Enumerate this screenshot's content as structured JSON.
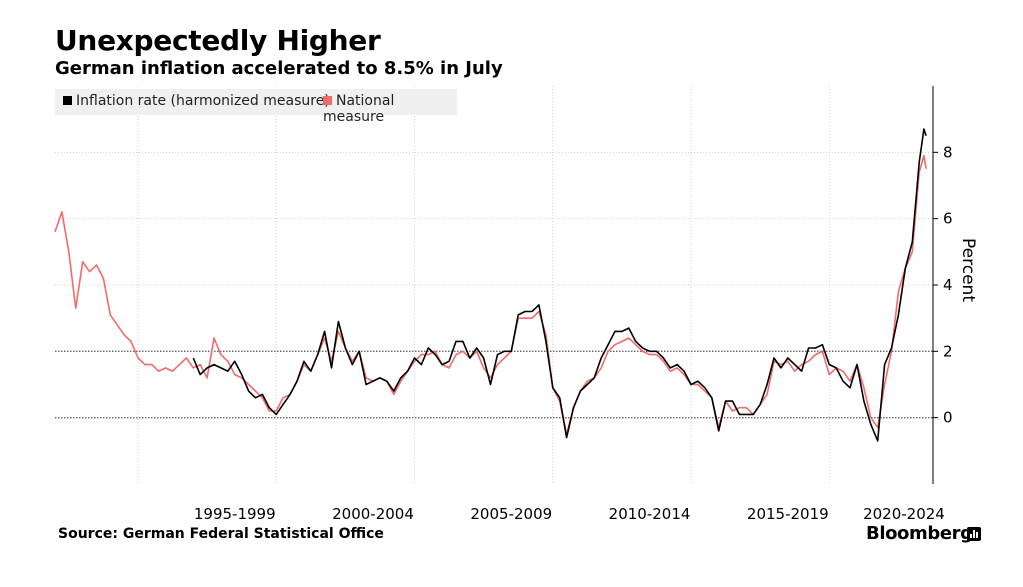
{
  "chart_data": {
    "type": "line",
    "title": "Unexpectedly Higher",
    "subtitle": "German inflation accelerated to 8.5% in July",
    "ylabel": "Percent",
    "xlabel": "",
    "ylim": [
      -2,
      10
    ],
    "yticks": [
      0,
      2,
      4,
      6,
      8
    ],
    "xlim": [
      1991.0,
      2022.75
    ],
    "x_period_labels": [
      "1995-1999",
      "2000-2004",
      "2005-2009",
      "2010-2014",
      "2015-2019",
      "2020-2024"
    ],
    "x_period_label_centers": [
      1997.5,
      2002.5,
      2007.5,
      2012.5,
      2017.5,
      2021.7
    ],
    "x_gridlines": [
      1994,
      1999,
      2004,
      2009,
      2014,
      2019
    ],
    "reference_lines": [
      0,
      2
    ],
    "legend": [
      "Inflation rate (harmonized measure)",
      "National measure"
    ],
    "colors": {
      "harmonized": "#000000",
      "national": "#f26b6b"
    },
    "series": [
      {
        "name": "Inflation rate (harmonized measure)",
        "x": [
          1996.0,
          1996.25,
          1996.5,
          1996.75,
          1997.0,
          1997.25,
          1997.5,
          1997.75,
          1998.0,
          1998.25,
          1998.5,
          1998.75,
          1999.0,
          1999.25,
          1999.5,
          1999.75,
          2000.0,
          2000.25,
          2000.5,
          2000.75,
          2001.0,
          2001.25,
          2001.5,
          2001.75,
          2002.0,
          2002.25,
          2002.5,
          2002.75,
          2003.0,
          2003.25,
          2003.5,
          2003.75,
          2004.0,
          2004.25,
          2004.5,
          2004.75,
          2005.0,
          2005.25,
          2005.5,
          2005.75,
          2006.0,
          2006.25,
          2006.5,
          2006.75,
          2007.0,
          2007.25,
          2007.5,
          2007.75,
          2008.0,
          2008.25,
          2008.5,
          2008.75,
          2009.0,
          2009.25,
          2009.5,
          2009.75,
          2010.0,
          2010.25,
          2010.5,
          2010.75,
          2011.0,
          2011.25,
          2011.5,
          2011.75,
          2012.0,
          2012.25,
          2012.5,
          2012.75,
          2013.0,
          2013.25,
          2013.5,
          2013.75,
          2014.0,
          2014.25,
          2014.5,
          2014.75,
          2015.0,
          2015.25,
          2015.5,
          2015.75,
          2016.0,
          2016.25,
          2016.5,
          2016.75,
          2017.0,
          2017.25,
          2017.5,
          2017.75,
          2018.0,
          2018.25,
          2018.5,
          2018.75,
          2019.0,
          2019.25,
          2019.5,
          2019.75,
          2020.0,
          2020.25,
          2020.5,
          2020.75,
          2021.0,
          2021.25,
          2021.5,
          2021.75,
          2022.0,
          2022.25,
          2022.42,
          2022.5
        ],
        "values": [
          1.8,
          1.3,
          1.5,
          1.6,
          1.5,
          1.4,
          1.7,
          1.3,
          0.8,
          0.6,
          0.7,
          0.3,
          0.1,
          0.4,
          0.7,
          1.1,
          1.7,
          1.4,
          1.9,
          2.6,
          1.5,
          2.9,
          2.1,
          1.6,
          2.0,
          1.0,
          1.1,
          1.2,
          1.1,
          0.8,
          1.2,
          1.4,
          1.8,
          1.6,
          2.1,
          1.9,
          1.6,
          1.7,
          2.3,
          2.3,
          1.8,
          2.1,
          1.8,
          1.0,
          1.9,
          2.0,
          2.0,
          3.1,
          3.2,
          3.2,
          3.4,
          2.3,
          0.9,
          0.6,
          -0.6,
          0.3,
          0.8,
          1.0,
          1.2,
          1.8,
          2.2,
          2.6,
          2.6,
          2.7,
          2.3,
          2.1,
          2.0,
          2.0,
          1.8,
          1.5,
          1.6,
          1.4,
          1.0,
          1.1,
          0.9,
          0.6,
          -0.4,
          0.5,
          0.5,
          0.1,
          0.1,
          0.1,
          0.4,
          1.0,
          1.8,
          1.5,
          1.8,
          1.6,
          1.4,
          2.1,
          2.1,
          2.2,
          1.6,
          1.5,
          1.1,
          0.9,
          1.6,
          0.5,
          -0.2,
          -0.7,
          1.6,
          2.1,
          3.1,
          4.5,
          5.3,
          7.7,
          8.7,
          8.5
        ]
      },
      {
        "name": "National measure",
        "x": [
          1991.0,
          1991.25,
          1991.5,
          1991.75,
          1992.0,
          1992.25,
          1992.5,
          1992.75,
          1993.0,
          1993.25,
          1993.5,
          1993.75,
          1994.0,
          1994.25,
          1994.5,
          1994.75,
          1995.0,
          1995.25,
          1995.5,
          1995.75,
          1996.0,
          1996.25,
          1996.5,
          1996.75,
          1997.0,
          1997.25,
          1997.5,
          1997.75,
          1998.0,
          1998.25,
          1998.5,
          1998.75,
          1999.0,
          1999.25,
          1999.5,
          1999.75,
          2000.0,
          2000.25,
          2000.5,
          2000.75,
          2001.0,
          2001.25,
          2001.5,
          2001.75,
          2002.0,
          2002.25,
          2002.5,
          2002.75,
          2003.0,
          2003.25,
          2003.5,
          2003.75,
          2004.0,
          2004.25,
          2004.5,
          2004.75,
          2005.0,
          2005.25,
          2005.5,
          2005.75,
          2006.0,
          2006.25,
          2006.5,
          2006.75,
          2007.0,
          2007.25,
          2007.5,
          2007.75,
          2008.0,
          2008.25,
          2008.5,
          2008.75,
          2009.0,
          2009.25,
          2009.5,
          2009.75,
          2010.0,
          2010.25,
          2010.5,
          2010.75,
          2011.0,
          2011.25,
          2011.5,
          2011.75,
          2012.0,
          2012.25,
          2012.5,
          2012.75,
          2013.0,
          2013.25,
          2013.5,
          2013.75,
          2014.0,
          2014.25,
          2014.5,
          2014.75,
          2015.0,
          2015.25,
          2015.5,
          2015.75,
          2016.0,
          2016.25,
          2016.5,
          2016.75,
          2017.0,
          2017.25,
          2017.5,
          2017.75,
          2018.0,
          2018.25,
          2018.5,
          2018.75,
          2019.0,
          2019.25,
          2019.5,
          2019.75,
          2020.0,
          2020.25,
          2020.5,
          2020.75,
          2021.0,
          2021.25,
          2021.5,
          2021.75,
          2022.0,
          2022.25,
          2022.42,
          2022.5
        ],
        "values": [
          5.6,
          6.2,
          5.0,
          3.3,
          4.7,
          4.4,
          4.6,
          4.2,
          3.1,
          2.8,
          2.5,
          2.3,
          1.8,
          1.6,
          1.6,
          1.4,
          1.5,
          1.4,
          1.6,
          1.8,
          1.5,
          1.6,
          1.2,
          2.4,
          1.9,
          1.7,
          1.3,
          1.2,
          1.0,
          0.8,
          0.6,
          0.2,
          0.2,
          0.6,
          0.7,
          1.1,
          1.6,
          1.4,
          1.9,
          2.4,
          1.7,
          2.6,
          2.1,
          1.7,
          2.0,
          1.2,
          1.1,
          1.2,
          1.1,
          0.7,
          1.1,
          1.4,
          1.7,
          1.9,
          1.9,
          2.0,
          1.6,
          1.5,
          1.9,
          2.0,
          1.8,
          2.0,
          1.5,
          1.2,
          1.6,
          1.8,
          2.0,
          3.0,
          3.0,
          3.0,
          3.2,
          2.5,
          0.9,
          0.5,
          -0.5,
          0.3,
          0.8,
          1.1,
          1.2,
          1.5,
          2.0,
          2.2,
          2.3,
          2.4,
          2.2,
          2.0,
          1.9,
          1.9,
          1.7,
          1.4,
          1.5,
          1.3,
          1.0,
          1.0,
          0.8,
          0.6,
          -0.3,
          0.5,
          0.2,
          0.3,
          0.3,
          0.1,
          0.4,
          0.7,
          1.7,
          1.6,
          1.7,
          1.4,
          1.6,
          1.7,
          1.9,
          2.0,
          1.3,
          1.5,
          1.4,
          1.1,
          1.6,
          0.9,
          0.0,
          -0.3,
          1.0,
          2.0,
          3.8,
          4.5,
          5.0,
          7.4,
          7.9,
          7.5
        ]
      }
    ]
  },
  "source": "Source: German Federal Statistical Office",
  "brand": "Bloomberg"
}
